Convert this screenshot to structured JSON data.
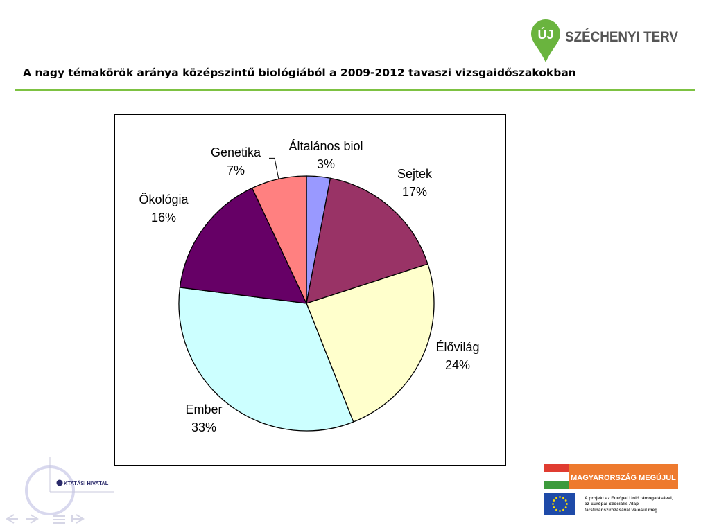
{
  "header": {
    "logo_prefix": "ÚJ",
    "logo_text": "SZÉCHENYI TERV",
    "title": "A nagy témakörök aránya középszintű biológiából a 2009-2012 tavaszi vizsgaidőszakokban"
  },
  "colors": {
    "accent_green": "#7dc242",
    "logo_green": "#6ab43e",
    "logo_text": "#555555"
  },
  "chart_data": {
    "type": "pie",
    "start": "top, clockwise",
    "slices": [
      {
        "name": "Általános biol",
        "value": 3,
        "label": "3%",
        "color": "#9999ff"
      },
      {
        "name": "Sejtek",
        "value": 17,
        "label": "17%",
        "color": "#993366"
      },
      {
        "name": "Élővilág",
        "value": 24,
        "label": "24%",
        "color": "#ffffcc"
      },
      {
        "name": "Ember",
        "value": 33,
        "label": "33%",
        "color": "#ccffff"
      },
      {
        "name": "Ökológia",
        "value": 16,
        "label": "16%",
        "color": "#660066"
      },
      {
        "name": "Genetika",
        "value": 7,
        "label": "7%",
        "color": "#ff8080"
      }
    ]
  },
  "footer": {
    "org_logo_text": "KTATÁSI HIVATAL",
    "hu_banner_text": "MAGYARORSZÁG MEGÚJUL",
    "eu_lines": [
      "A projekt az Európai Unió támogatásával,",
      "az Európai Szociális Alap",
      "társfinanszírozásával valósul meg."
    ],
    "nav_icons": [
      "nav-prev-icon",
      "nav-next-icon",
      "nav-menu-icon",
      "nav-return-icon"
    ]
  }
}
